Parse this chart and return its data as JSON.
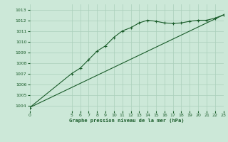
{
  "title": "Graphe pression niveau de la mer (hPa)",
  "bg_color": "#cce8d8",
  "grid_color": "#aacfbb",
  "line_color": "#1a5c2a",
  "x_start": 0,
  "x_end": 23,
  "ylim": [
    1003.5,
    1013.5
  ],
  "yticks": [
    1004,
    1005,
    1006,
    1007,
    1008,
    1009,
    1010,
    1011,
    1012,
    1013
  ],
  "xticks": [
    0,
    5,
    6,
    7,
    8,
    9,
    10,
    11,
    12,
    13,
    14,
    15,
    16,
    17,
    18,
    19,
    20,
    21,
    22,
    23
  ],
  "series1_x": [
    0,
    5,
    6,
    7,
    8,
    9,
    10,
    11,
    12,
    13,
    14,
    15,
    16,
    17,
    18,
    19,
    20,
    21,
    22,
    23
  ],
  "series1_y": [
    1003.8,
    1007.0,
    1007.5,
    1008.3,
    1009.1,
    1009.6,
    1010.4,
    1011.0,
    1011.3,
    1011.75,
    1012.0,
    1011.9,
    1011.75,
    1011.7,
    1011.75,
    1011.9,
    1012.0,
    1012.0,
    1012.2,
    1012.5
  ],
  "series2_x": [
    0,
    23
  ],
  "series2_y": [
    1003.8,
    1012.5
  ]
}
